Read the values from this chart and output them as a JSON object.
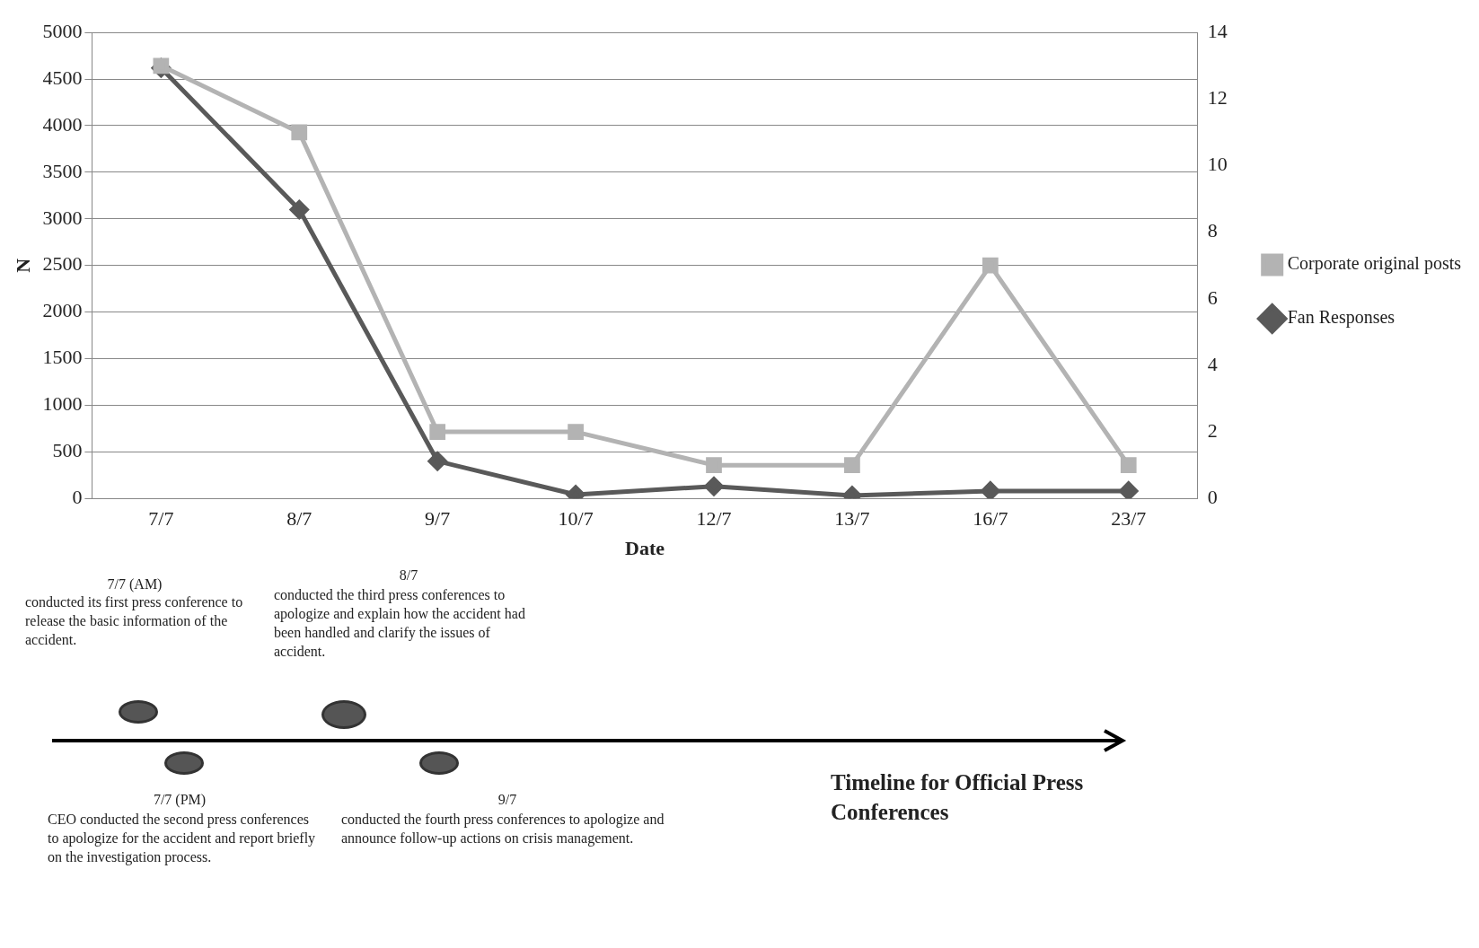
{
  "chart_data": {
    "type": "line",
    "xlabel": "Date",
    "ylabel": "N",
    "categories": [
      "7/7",
      "8/7",
      "9/7",
      "10/7",
      "12/7",
      "13/7",
      "16/7",
      "23/7"
    ],
    "series": [
      {
        "name": "Fan Responses",
        "color": "#595959",
        "marker": "diamond",
        "values": [
          4620,
          3100,
          400,
          40,
          130,
          30,
          80,
          80
        ]
      },
      {
        "name": "Corporate original posts",
        "color": "#b3b3b3",
        "marker": "square",
        "axis": "y2",
        "values": [
          13,
          11,
          2,
          2,
          1,
          1,
          7,
          1
        ]
      }
    ],
    "ylim": [
      0,
      5000
    ],
    "yticks": [
      0,
      500,
      1000,
      1500,
      2000,
      2500,
      3000,
      3500,
      4000,
      4500,
      5000
    ],
    "y2lim": [
      0,
      14
    ],
    "y2ticks": [
      0,
      2,
      4,
      6,
      8,
      10,
      12,
      14
    ],
    "grid": "y",
    "legend": "right",
    "line_style": "solid",
    "annotations": [
      "7/7 (AM)",
      "conducted its first press conference to  release the basic information of the accident.",
      "8/7",
      "conducted the third press conferences  to  apologize and explain how the accident had been handled and clarify the issues of accident.",
      "7/7 (PM)",
      "CEO conducted the second press conferences to apologize  for the accident and report briefly on the investigation process.",
      "9/7",
      "conducted the fourth press conferences  to apologize and announce follow-up actions on crisis management.",
      "Timeline for Official Press Conferences"
    ]
  }
}
